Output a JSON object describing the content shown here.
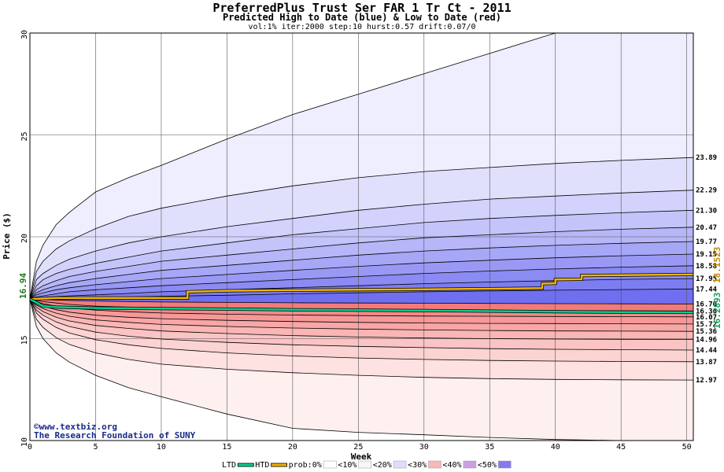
{
  "chart_data": {
    "type": "area",
    "title": "PreferredPlus Trust Ser FAR 1 Tr Ct - 2011",
    "subtitle": "Predicted High to Date (blue) &  Low to Date (red)",
    "params": "vol:1% iter:2000 step:10 hurst:0.57 drift:0.07/0",
    "xlabel": "Week",
    "ylabel": "Price ($)",
    "xlim": [
      0,
      50.5
    ],
    "ylim": [
      10,
      30
    ],
    "xticks": [
      0,
      5,
      10,
      15,
      20,
      25,
      30,
      35,
      40,
      45,
      50
    ],
    "yticks": [
      10,
      15,
      20,
      25,
      30
    ],
    "start_price_label": "16.94",
    "start_price": 16.94,
    "ltd_final_label": "16.2893",
    "htd_final_label": "18.1523",
    "weeks": [
      0,
      0.5,
      1,
      2,
      3,
      5,
      7.5,
      10,
      15,
      20,
      25,
      30,
      35,
      40,
      45,
      50.5
    ],
    "high_bands": [
      {
        "label": "23.89",
        "end": 23.89,
        "values": [
          16.94,
          18.3,
          18.8,
          19.4,
          19.8,
          20.4,
          21.0,
          21.4,
          22.0,
          22.5,
          22.9,
          23.2,
          23.4,
          23.6,
          23.75,
          23.89
        ]
      },
      {
        "label": "22.29",
        "end": 22.29,
        "values": [
          16.94,
          17.9,
          18.2,
          18.6,
          18.9,
          19.3,
          19.7,
          20.0,
          20.5,
          20.9,
          21.3,
          21.6,
          21.85,
          22.0,
          22.15,
          22.29
        ]
      },
      {
        "label": "21.30",
        "end": 21.3,
        "values": [
          16.94,
          17.6,
          17.9,
          18.2,
          18.4,
          18.7,
          19.0,
          19.3,
          19.7,
          20.1,
          20.4,
          20.7,
          20.9,
          21.05,
          21.18,
          21.3
        ]
      },
      {
        "label": "20.47",
        "end": 20.47,
        "values": [
          16.94,
          17.4,
          17.6,
          17.85,
          18.05,
          18.3,
          18.55,
          18.8,
          19.1,
          19.4,
          19.7,
          19.95,
          20.1,
          20.25,
          20.37,
          20.47
        ]
      },
      {
        "label": "19.77",
        "end": 19.77,
        "values": [
          16.94,
          17.25,
          17.4,
          17.6,
          17.75,
          17.95,
          18.15,
          18.35,
          18.6,
          18.85,
          19.1,
          19.3,
          19.45,
          19.58,
          19.68,
          19.77
        ]
      },
      {
        "label": "19.15",
        "end": 19.15,
        "values": [
          16.94,
          17.15,
          17.25,
          17.4,
          17.5,
          17.65,
          17.8,
          17.95,
          18.15,
          18.35,
          18.55,
          18.72,
          18.85,
          18.97,
          19.07,
          19.15
        ]
      },
      {
        "label": "18.58",
        "end": 18.58,
        "values": [
          16.94,
          17.05,
          17.1,
          17.2,
          17.3,
          17.4,
          17.5,
          17.6,
          17.75,
          17.9,
          18.05,
          18.2,
          18.32,
          18.42,
          18.51,
          18.58
        ]
      },
      {
        "label": "17.95",
        "end": 17.95,
        "values": [
          16.94,
          17.0,
          17.03,
          17.07,
          17.1,
          17.15,
          17.22,
          17.3,
          17.4,
          17.5,
          17.6,
          17.7,
          17.78,
          17.85,
          17.91,
          17.95
        ]
      },
      {
        "label": "17.44",
        "end": 17.44,
        "values": [
          16.94,
          16.95,
          16.96,
          16.98,
          17.0,
          17.02,
          17.05,
          17.08,
          17.13,
          17.2,
          17.25,
          17.3,
          17.34,
          17.38,
          17.41,
          17.44
        ]
      }
    ],
    "low_bands": [
      {
        "label": "16.70",
        "end": 16.7,
        "values": [
          16.94,
          16.93,
          16.92,
          16.9,
          16.88,
          16.85,
          16.82,
          16.8,
          16.78,
          16.76,
          16.75,
          16.74,
          16.73,
          16.72,
          16.71,
          16.7
        ]
      },
      {
        "label": "16.36",
        "end": 16.36,
        "values": [
          16.94,
          16.88,
          16.82,
          16.75,
          16.68,
          16.6,
          16.55,
          16.5,
          16.47,
          16.44,
          16.42,
          16.4,
          16.39,
          16.38,
          16.37,
          16.36
        ]
      },
      {
        "label": "16.07",
        "end": 16.07,
        "values": [
          16.94,
          16.82,
          16.72,
          16.6,
          16.5,
          16.4,
          16.32,
          16.26,
          16.2,
          16.16,
          16.13,
          16.11,
          16.1,
          16.09,
          16.08,
          16.07
        ]
      },
      {
        "label": "15.72",
        "end": 15.72,
        "values": [
          16.94,
          16.75,
          16.6,
          16.42,
          16.3,
          16.15,
          16.05,
          15.98,
          15.9,
          15.84,
          15.8,
          15.77,
          15.75,
          15.74,
          15.73,
          15.72
        ]
      },
      {
        "label": "15.36",
        "end": 15.36,
        "values": [
          16.94,
          16.65,
          16.47,
          16.25,
          16.1,
          15.92,
          15.8,
          15.7,
          15.6,
          15.52,
          15.47,
          15.43,
          15.4,
          15.38,
          15.37,
          15.36
        ]
      },
      {
        "label": "14.96",
        "end": 14.96,
        "values": [
          16.94,
          16.55,
          16.33,
          16.05,
          15.87,
          15.65,
          15.5,
          15.38,
          15.25,
          15.15,
          15.08,
          15.03,
          15.0,
          14.98,
          14.97,
          14.96
        ]
      },
      {
        "label": "14.44",
        "end": 14.44,
        "values": [
          16.94,
          16.4,
          16.15,
          15.82,
          15.6,
          15.32,
          15.12,
          14.98,
          14.82,
          14.7,
          14.62,
          14.56,
          14.51,
          14.48,
          14.46,
          14.44
        ]
      },
      {
        "label": "13.87",
        "end": 13.87,
        "values": [
          16.94,
          16.25,
          15.95,
          15.55,
          15.28,
          14.95,
          14.7,
          14.52,
          14.3,
          14.15,
          14.05,
          13.98,
          13.93,
          13.9,
          13.88,
          13.87
        ]
      },
      {
        "label": "12.97",
        "end": 12.97,
        "values": [
          16.94,
          15.95,
          15.55,
          15.05,
          14.72,
          14.3,
          13.98,
          13.75,
          13.5,
          13.33,
          13.2,
          13.1,
          13.04,
          13.0,
          12.98,
          12.97
        ]
      }
    ],
    "outer_high": {
      "values": [
        16.94,
        18.8,
        19.6,
        20.6,
        21.2,
        22.2,
        22.9,
        23.5,
        24.8,
        26.0,
        27.0,
        28.0,
        29.0,
        30.0,
        30.0,
        30.0
      ]
    },
    "outer_low": {
      "values": [
        16.94,
        15.6,
        15.0,
        14.3,
        13.85,
        13.2,
        12.6,
        12.15,
        11.3,
        10.6,
        10.4,
        10.28,
        10.15,
        10.05,
        10.0,
        10.0
      ]
    },
    "htd_series": {
      "name": "HTD",
      "color": "#f0b400",
      "points": [
        [
          0,
          16.94
        ],
        [
          1,
          16.97
        ],
        [
          2,
          17.0
        ],
        [
          5,
          17.0
        ],
        [
          12,
          17.0
        ],
        [
          12,
          17.3
        ],
        [
          15,
          17.35
        ],
        [
          20,
          17.38
        ],
        [
          25,
          17.4
        ],
        [
          30,
          17.42
        ],
        [
          35,
          17.45
        ],
        [
          39,
          17.48
        ],
        [
          39,
          17.7
        ],
        [
          40,
          17.72
        ],
        [
          40,
          17.9
        ],
        [
          42,
          17.92
        ],
        [
          42,
          18.1
        ],
        [
          45,
          18.12
        ],
        [
          50.5,
          18.15
        ]
      ]
    },
    "ltd_series": {
      "name": "LTD",
      "color": "#00d090",
      "points": [
        [
          0,
          16.94
        ],
        [
          1,
          16.6
        ],
        [
          2,
          16.55
        ],
        [
          5,
          16.5
        ],
        [
          10,
          16.48
        ],
        [
          15,
          16.45
        ],
        [
          20,
          16.42
        ],
        [
          25,
          16.4
        ],
        [
          30,
          16.38
        ],
        [
          35,
          16.35
        ],
        [
          40,
          16.32
        ],
        [
          45,
          16.3
        ],
        [
          50.5,
          16.29
        ]
      ]
    },
    "colors": {
      "high_fill_light": "#eeeeff",
      "high_fill_dark": "#6f6ff0",
      "low_fill_light": "#fff0f0",
      "low_fill_dark": "#f47a7a",
      "grid": "#555555"
    },
    "legend": {
      "placement": "bottom",
      "items": [
        {
          "label": "LTD",
          "kind": "line",
          "color": "#00d090"
        },
        {
          "label": "HTD",
          "kind": "line",
          "color": "#f0b400"
        },
        {
          "label": "prob:0%",
          "kind": "swatch",
          "color": "#ffffff"
        },
        {
          "label": "<10%",
          "kind": "swatch",
          "color": "#f6f6ff"
        },
        {
          "label": "<20%",
          "kind": "swatch",
          "color": "#e0dcff"
        },
        {
          "label": "<30%",
          "kind": "swatch",
          "color": "#f7b8b8"
        },
        {
          "label": "<40%",
          "kind": "swatch",
          "color": "#c9a0e0"
        },
        {
          "label": "<50%",
          "kind": "swatch",
          "color": "#8878f0"
        }
      ]
    },
    "credit": [
      "©www.textbiz.org",
      "The Research Foundation of SUNY"
    ]
  }
}
